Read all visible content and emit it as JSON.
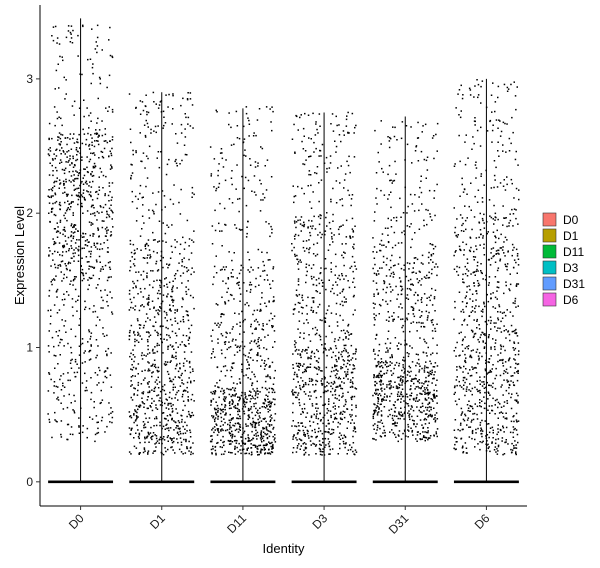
{
  "chart_data": {
    "type": "violin-jitter",
    "xlabel": "Identity",
    "ylabel": "Expression Level",
    "ylim": [
      -0.18,
      3.55
    ],
    "yticks": [
      0,
      1,
      2,
      3
    ],
    "categories": [
      "D0",
      "D1",
      "D11",
      "D3",
      "D31",
      "D6"
    ],
    "groups": [
      {
        "name": "D0",
        "color": "#F8766D",
        "max": 3.45,
        "zero_fraction": 0.35,
        "density": [
          {
            "from": 0.3,
            "to": 1.5,
            "weight": 0.28
          },
          {
            "from": 1.5,
            "to": 2.6,
            "weight": 0.62
          },
          {
            "from": 2.6,
            "to": 3.4,
            "weight": 0.1
          }
        ]
      },
      {
        "name": "D1",
        "color": "#B79F00",
        "max": 2.9,
        "zero_fraction": 0.6,
        "density": [
          {
            "from": 0.2,
            "to": 0.9,
            "weight": 0.45
          },
          {
            "from": 0.9,
            "to": 1.8,
            "weight": 0.38
          },
          {
            "from": 1.8,
            "to": 2.9,
            "weight": 0.17
          }
        ]
      },
      {
        "name": "D11",
        "color": "#00BA38",
        "max": 2.78,
        "zero_fraction": 0.65,
        "density": [
          {
            "from": 0.2,
            "to": 0.7,
            "weight": 0.55
          },
          {
            "from": 0.7,
            "to": 1.6,
            "weight": 0.3
          },
          {
            "from": 1.6,
            "to": 2.8,
            "weight": 0.15
          }
        ]
      },
      {
        "name": "D3",
        "color": "#00BFC4",
        "max": 2.75,
        "zero_fraction": 0.8,
        "density": [
          {
            "from": 0.2,
            "to": 1.0,
            "weight": 0.55
          },
          {
            "from": 1.0,
            "to": 2.0,
            "weight": 0.32
          },
          {
            "from": 2.0,
            "to": 2.75,
            "weight": 0.13
          }
        ]
      },
      {
        "name": "D31",
        "color": "#619CFF",
        "max": 2.72,
        "zero_fraction": 0.75,
        "density": [
          {
            "from": 0.3,
            "to": 0.9,
            "weight": 0.55
          },
          {
            "from": 0.9,
            "to": 1.8,
            "weight": 0.32
          },
          {
            "from": 1.8,
            "to": 2.7,
            "weight": 0.13
          }
        ]
      },
      {
        "name": "D6",
        "color": "#F564E3",
        "max": 3.0,
        "zero_fraction": 0.7,
        "density": [
          {
            "from": 0.2,
            "to": 1.0,
            "weight": 0.45
          },
          {
            "from": 1.0,
            "to": 2.0,
            "weight": 0.4
          },
          {
            "from": 2.0,
            "to": 3.0,
            "weight": 0.15
          }
        ]
      }
    ],
    "legend": {
      "position": "right",
      "entries": [
        "D0",
        "D1",
        "D11",
        "D3",
        "D31",
        "D6"
      ]
    },
    "grid": false
  }
}
